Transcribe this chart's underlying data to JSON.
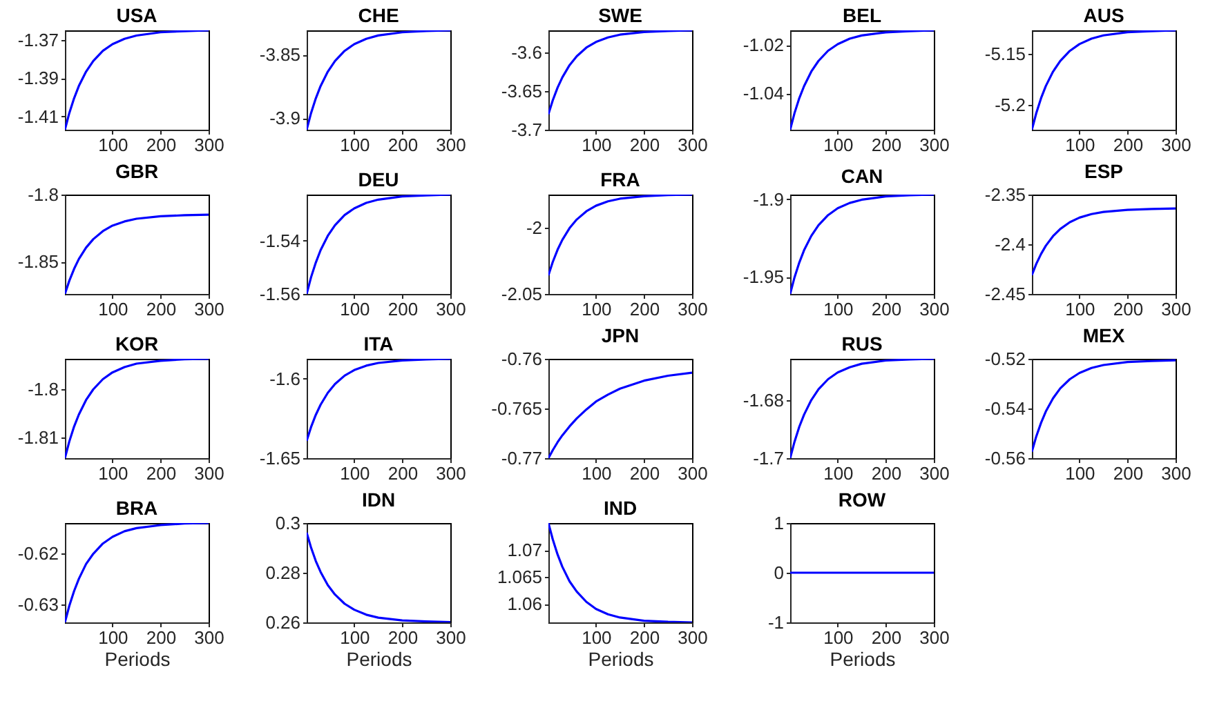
{
  "chart_data": [
    {
      "type": "line",
      "title": "USA",
      "x": [
        1,
        10,
        20,
        30,
        45,
        60,
        80,
        100,
        125,
        150,
        200,
        250,
        300
      ],
      "series": [
        {
          "color": "#0000ff",
          "values": [
            -1.417,
            -1.4084,
            -1.4006,
            -1.3941,
            -1.3866,
            -1.381,
            -1.3757,
            -1.3722,
            -1.3694,
            -1.3677,
            -1.366,
            -1.3654,
            -1.365
          ]
        }
      ],
      "xlim": [
        1,
        300
      ],
      "xticks": [
        100,
        200,
        300
      ],
      "ylim": [
        -1.417,
        -1.365
      ],
      "yticks": [
        -1.41,
        -1.39,
        -1.37
      ]
    },
    {
      "type": "line",
      "title": "CHE",
      "x": [
        1,
        10,
        20,
        30,
        45,
        60,
        80,
        100,
        125,
        150,
        200,
        250,
        300
      ],
      "series": [
        {
          "color": "#0000ff",
          "values": [
            -3.909,
            -3.8961,
            -3.8844,
            -3.8747,
            -3.8634,
            -3.855,
            -3.8471,
            -3.8418,
            -3.8376,
            -3.835,
            -3.8325,
            -3.8315,
            -3.831
          ]
        }
      ],
      "xlim": [
        1,
        300
      ],
      "xticks": [
        100,
        200,
        300
      ],
      "ylim": [
        -3.909,
        -3.831
      ],
      "yticks": [
        -3.9,
        -3.85
      ]
    },
    {
      "type": "line",
      "title": "SWE",
      "x": [
        1,
        10,
        20,
        30,
        45,
        60,
        80,
        100,
        125,
        150,
        200,
        250,
        300
      ],
      "series": [
        {
          "color": "#0000ff",
          "values": [
            -3.68,
            -3.6622,
            -3.6459,
            -3.6325,
            -3.6168,
            -3.6053,
            -3.5942,
            -3.5869,
            -3.5811,
            -3.5775,
            -3.5741,
            -3.5728,
            -3.572
          ]
        }
      ],
      "xlim": [
        1,
        300
      ],
      "xticks": [
        100,
        200,
        300
      ],
      "ylim": [
        -3.7,
        -3.572
      ],
      "yticks": [
        -3.7,
        -3.65,
        -3.6
      ]
    },
    {
      "type": "line",
      "title": "BEL",
      "x": [
        1,
        10,
        20,
        30,
        45,
        60,
        80,
        100,
        125,
        150,
        200,
        250,
        300
      ],
      "series": [
        {
          "color": "#0000ff",
          "values": [
            -1.055,
            -1.0482,
            -1.042,
            -1.037,
            -1.031,
            -1.0266,
            -1.0224,
            -1.0197,
            -1.0174,
            -1.0161,
            -1.0148,
            -1.0143,
            -1.014
          ]
        }
      ],
      "xlim": [
        1,
        300
      ],
      "xticks": [
        100,
        200,
        300
      ],
      "ylim": [
        -1.055,
        -1.014
      ],
      "yticks": [
        -1.04,
        -1.02
      ]
    },
    {
      "type": "line",
      "title": "AUS",
      "x": [
        1,
        10,
        20,
        30,
        45,
        60,
        80,
        100,
        125,
        150,
        200,
        250,
        300
      ],
      "series": [
        {
          "color": "#0000ff",
          "values": [
            -5.224,
            -5.208,
            -5.1933,
            -5.1813,
            -5.1673,
            -5.1569,
            -5.147,
            -5.1404,
            -5.1351,
            -5.1319,
            -5.1288,
            -5.1277,
            -5.127
          ]
        }
      ],
      "xlim": [
        1,
        300
      ],
      "xticks": [
        100,
        200,
        300
      ],
      "ylim": [
        -5.224,
        -5.127
      ],
      "yticks": [
        -5.2,
        -5.15
      ]
    },
    {
      "type": "line",
      "title": "GBR",
      "x": [
        1,
        10,
        20,
        30,
        45,
        60,
        80,
        100,
        125,
        150,
        200,
        250,
        300
      ],
      "series": [
        {
          "color": "#0000ff",
          "values": [
            -1.874,
            -1.8643,
            -1.8554,
            -1.848,
            -1.8395,
            -1.8332,
            -1.8272,
            -1.8231,
            -1.82,
            -1.818,
            -1.8161,
            -1.8154,
            -1.815
          ]
        }
      ],
      "xlim": [
        1,
        300
      ],
      "xticks": [
        100,
        200,
        300
      ],
      "ylim": [
        -1.874,
        -1.8
      ],
      "yticks": [
        -1.85,
        -1.8
      ]
    },
    {
      "type": "line",
      "title": "DEU",
      "x": [
        1,
        10,
        20,
        30,
        45,
        60,
        80,
        100,
        125,
        150,
        200,
        250,
        300
      ],
      "series": [
        {
          "color": "#0000ff",
          "values": [
            -1.56,
            -1.5538,
            -1.5482,
            -1.5435,
            -1.5381,
            -1.5341,
            -1.5303,
            -1.5278,
            -1.5257,
            -1.5245,
            -1.5233,
            -1.5229,
            -1.5226
          ]
        }
      ],
      "xlim": [
        1,
        300
      ],
      "xticks": [
        100,
        200,
        300
      ],
      "ylim": [
        -1.56,
        -1.5226
      ],
      "yticks": [
        -1.56,
        -1.54
      ]
    },
    {
      "type": "line",
      "title": "FRA",
      "x": [
        1,
        10,
        20,
        30,
        45,
        60,
        80,
        100,
        125,
        150,
        200,
        250,
        300
      ],
      "series": [
        {
          "color": "#0000ff",
          "values": [
            -2.036,
            -2.0259,
            -2.0167,
            -2.0092,
            -2.0003,
            -1.9938,
            -1.9876,
            -1.9834,
            -1.9801,
            -1.9781,
            -1.9762,
            -1.9754,
            -1.975
          ]
        }
      ],
      "xlim": [
        1,
        300
      ],
      "xticks": [
        100,
        200,
        300
      ],
      "ylim": [
        -2.05,
        -1.975
      ],
      "yticks": [
        -2.05,
        -2
      ]
    },
    {
      "type": "line",
      "title": "CAN",
      "x": [
        1,
        10,
        20,
        30,
        45,
        60,
        80,
        100,
        125,
        150,
        200,
        250,
        300
      ],
      "series": [
        {
          "color": "#0000ff",
          "values": [
            -1.961,
            -1.9504,
            -1.9408,
            -1.9328,
            -1.9236,
            -1.9167,
            -1.9102,
            -1.9058,
            -1.9024,
            -1.9003,
            -1.8982,
            -1.8974,
            -1.897
          ]
        }
      ],
      "xlim": [
        1,
        300
      ],
      "xticks": [
        100,
        200,
        300
      ],
      "ylim": [
        -1.961,
        -1.897
      ],
      "yticks": [
        -1.95,
        -1.9
      ]
    },
    {
      "type": "line",
      "title": "ESP",
      "x": [
        1,
        10,
        20,
        30,
        45,
        60,
        80,
        100,
        125,
        150,
        200,
        250,
        300
      ],
      "series": [
        {
          "color": "#0000ff",
          "values": [
            -2.431,
            -2.4199,
            -2.4098,
            -2.4015,
            -2.3918,
            -2.3846,
            -2.3778,
            -2.3732,
            -2.3696,
            -2.3674,
            -2.3653,
            -2.3645,
            -2.364
          ]
        }
      ],
      "xlim": [
        1,
        300
      ],
      "xticks": [
        100,
        200,
        300
      ],
      "ylim": [
        -2.45,
        -2.35
      ],
      "yticks": [
        -2.45,
        -2.4,
        -2.35
      ]
    },
    {
      "type": "line",
      "title": "KOR",
      "x": [
        1,
        10,
        20,
        30,
        45,
        60,
        80,
        100,
        125,
        150,
        200,
        250,
        300
      ],
      "series": [
        {
          "color": "#0000ff",
          "values": [
            -1.8142,
            -1.8108,
            -1.8077,
            -1.8052,
            -1.8022,
            -1.8,
            -1.7979,
            -1.7965,
            -1.7954,
            -1.7947,
            -1.7941,
            -1.7938,
            -1.7937
          ]
        }
      ],
      "xlim": [
        1,
        300
      ],
      "xticks": [
        100,
        200,
        300
      ],
      "ylim": [
        -1.8142,
        -1.7937
      ],
      "yticks": [
        -1.81,
        -1.8
      ]
    },
    {
      "type": "line",
      "title": "ITA",
      "x": [
        1,
        10,
        20,
        30,
        45,
        60,
        80,
        100,
        125,
        150,
        200,
        250,
        300
      ],
      "series": [
        {
          "color": "#0000ff",
          "values": [
            -1.639,
            -1.6305,
            -1.6227,
            -1.6163,
            -1.6088,
            -1.6033,
            -1.598,
            -1.5945,
            -1.5917,
            -1.59,
            -1.5884,
            -1.5878,
            -1.5874
          ]
        }
      ],
      "xlim": [
        1,
        300
      ],
      "xticks": [
        100,
        200,
        300
      ],
      "ylim": [
        -1.65,
        -1.5874
      ],
      "yticks": [
        -1.65,
        -1.6
      ]
    },
    {
      "type": "line",
      "title": "JPN",
      "x": [
        1,
        10,
        20,
        30,
        45,
        60,
        80,
        100,
        125,
        150,
        200,
        250,
        300
      ],
      "series": [
        {
          "color": "#0000ff",
          "values": [
            -0.77,
            -0.7692,
            -0.7684,
            -0.7677,
            -0.7668,
            -0.766,
            -0.7651,
            -0.7643,
            -0.7636,
            -0.763,
            -0.7622,
            -0.7617,
            -0.7614
          ]
        }
      ],
      "xlim": [
        1,
        300
      ],
      "xticks": [
        100,
        200,
        300
      ],
      "ylim": [
        -0.77,
        -0.76
      ],
      "yticks": [
        -0.77,
        -0.765,
        -0.76
      ]
    },
    {
      "type": "line",
      "title": "RUS",
      "x": [
        1,
        10,
        20,
        30,
        45,
        60,
        80,
        100,
        125,
        150,
        200,
        250,
        300
      ],
      "series": [
        {
          "color": "#0000ff",
          "values": [
            -1.7,
            -1.6944,
            -1.6892,
            -1.685,
            -1.68,
            -1.6763,
            -1.6728,
            -1.6705,
            -1.6687,
            -1.6675,
            -1.6664,
            -1.666,
            -1.6658
          ]
        }
      ],
      "xlim": [
        1,
        300
      ],
      "xticks": [
        100,
        200,
        300
      ],
      "ylim": [
        -1.7,
        -1.6658
      ],
      "yticks": [
        -1.7,
        -1.68
      ]
    },
    {
      "type": "line",
      "title": "MEX",
      "x": [
        1,
        10,
        20,
        30,
        45,
        60,
        80,
        100,
        125,
        150,
        200,
        250,
        300
      ],
      "series": [
        {
          "color": "#0000ff",
          "values": [
            -0.5574,
            -0.5513,
            -0.5458,
            -0.5412,
            -0.5359,
            -0.5319,
            -0.5282,
            -0.5257,
            -0.5237,
            -0.5225,
            -0.5213,
            -0.5209,
            -0.5206
          ]
        }
      ],
      "xlim": [
        1,
        300
      ],
      "xticks": [
        100,
        200,
        300
      ],
      "ylim": [
        -0.56,
        -0.52
      ],
      "yticks": [
        -0.56,
        -0.54,
        -0.52
      ]
    },
    {
      "type": "line",
      "title": "BRA",
      "xlabel": "Periods",
      "x": [
        1,
        10,
        20,
        30,
        45,
        60,
        80,
        100,
        125,
        150,
        200,
        250,
        300
      ],
      "series": [
        {
          "color": "#0000ff",
          "values": [
            -0.6335,
            -0.6303,
            -0.6274,
            -0.625,
            -0.6221,
            -0.6201,
            -0.6181,
            -0.6168,
            -0.6157,
            -0.6151,
            -0.6145,
            -0.6142,
            -0.6141
          ]
        }
      ],
      "xlim": [
        1,
        300
      ],
      "xticks": [
        100,
        200,
        300
      ],
      "ylim": [
        -0.6335,
        -0.6141
      ],
      "yticks": [
        -0.63,
        -0.62
      ]
    },
    {
      "type": "line",
      "title": "IDN",
      "xlabel": "Periods",
      "x": [
        1,
        10,
        20,
        30,
        45,
        60,
        80,
        100,
        125,
        150,
        200,
        250,
        300
      ],
      "series": [
        {
          "color": "#0000ff",
          "values": [
            0.2961,
            0.2902,
            0.2847,
            0.2803,
            0.275,
            0.2712,
            0.2675,
            0.2651,
            0.2631,
            0.2619,
            0.2608,
            0.2604,
            0.2601
          ]
        }
      ],
      "xlim": [
        1,
        300
      ],
      "xticks": [
        100,
        200,
        300
      ],
      "ylim": [
        0.26,
        0.3
      ],
      "yticks": [
        0.26,
        0.28,
        0.3
      ]
    },
    {
      "type": "line",
      "title": "IND",
      "xlabel": "Periods",
      "x": [
        1,
        10,
        20,
        30,
        45,
        60,
        80,
        100,
        125,
        150,
        200,
        250,
        300
      ],
      "series": [
        {
          "color": "#0000ff",
          "values": [
            1.075,
            1.072,
            1.0692,
            1.0669,
            1.0642,
            1.0623,
            1.0604,
            1.0591,
            1.0581,
            1.0575,
            1.0569,
            1.0567,
            1.0566
          ]
        }
      ],
      "xlim": [
        1,
        300
      ],
      "xticks": [
        100,
        200,
        300
      ],
      "ylim": [
        1.0566,
        1.075
      ],
      "yticks": [
        1.06,
        1.065,
        1.07
      ]
    },
    {
      "type": "line",
      "title": "ROW",
      "xlabel": "Periods",
      "x": [
        1,
        10,
        20,
        30,
        45,
        60,
        80,
        100,
        125,
        150,
        200,
        250,
        300
      ],
      "series": [
        {
          "color": "#0000ff",
          "values": [
            0,
            0,
            0,
            0,
            0,
            0,
            0,
            0,
            0,
            0,
            0,
            0,
            0
          ]
        }
      ],
      "xlim": [
        1,
        300
      ],
      "xticks": [
        100,
        200,
        300
      ],
      "ylim": [
        -1,
        1
      ],
      "yticks": [
        -1,
        0,
        1
      ]
    }
  ]
}
